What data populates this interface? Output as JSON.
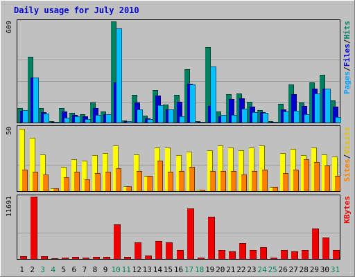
{
  "chart_data": {
    "type": "bar",
    "title": "Daily usage for July 2010",
    "days": [
      "1",
      "2",
      "3",
      "4",
      "5",
      "6",
      "7",
      "8",
      "9",
      "10",
      "11",
      "12",
      "13",
      "14",
      "15",
      "16",
      "17",
      "18",
      "19",
      "20",
      "21",
      "22",
      "23",
      "24",
      "25",
      "26",
      "27",
      "28",
      "29",
      "30",
      "31"
    ],
    "weekend_days": [
      3,
      4,
      10,
      11,
      17,
      18,
      24,
      25,
      31
    ],
    "panels": [
      {
        "id": "hits",
        "ymax_label": "609",
        "ymax": 609,
        "right_label": [
          "Pages",
          "/",
          "Files",
          "/",
          "Hits"
        ],
        "right_colors": [
          "#00a0ff",
          "#000000",
          "#0000cc",
          "#000000",
          "#008060"
        ],
        "series": [
          {
            "name": "Hits",
            "color": "#008060",
            "values": [
              87,
              395,
              87,
              8,
              87,
              58,
              50,
              120,
              66,
              609,
              12,
              165,
              41,
              198,
              107,
              165,
              321,
              8,
              453,
              66,
              173,
              177,
              124,
              74,
              8,
              111,
              231,
              120,
              243,
              289,
              132
            ]
          },
          {
            "name": "Files",
            "color": "#0000cc",
            "values": [
              71,
              272,
              62,
              4,
              66,
              45,
              37,
              87,
              50,
              243,
              8,
              120,
              25,
              161,
              78,
              124,
              235,
              4,
              100,
              37,
              140,
              148,
              95,
              62,
              4,
              78,
              173,
              99,
              206,
              206,
              95
            ]
          },
          {
            "name": "Pages",
            "color": "#00c0ff",
            "values": [
              74,
              272,
              53,
              4,
              29,
              37,
              21,
              45,
              50,
              568,
              8,
              79,
              21,
              103,
              78,
              37,
              231,
              4,
              338,
              45,
              45,
              82,
              62,
              58,
              4,
              66,
              70,
              50,
              177,
              206,
              33
            ]
          }
        ]
      },
      {
        "id": "visits",
        "ymax_label": "50",
        "ymax": 50,
        "right_label": [
          "Sites",
          "/",
          "Visits"
        ],
        "right_colors": [
          "#ff8000",
          "#000000",
          "#e0c000"
        ],
        "series": [
          {
            "name": "Visits",
            "color": "#ffff00",
            "values": [
              49,
              42,
              29,
              2,
              19,
              25,
              24,
              28,
              30,
              36,
              4,
              29,
              12,
              34,
              34,
              28,
              31,
              1,
              32,
              36,
              34,
              32,
              34,
              36,
              3,
              30,
              33,
              28,
              34,
              29,
              27
            ]
          },
          {
            "name": "Sites",
            "color": "#ff8000",
            "values": [
              17,
              15,
              13,
              2,
              11,
              15,
              9,
              14,
              15,
              18,
              4,
              16,
              12,
              24,
              15,
              16,
              19,
              1,
              16,
              16,
              16,
              13,
              16,
              17,
              3,
              14,
              17,
              25,
              23,
              20,
              12
            ]
          }
        ]
      },
      {
        "id": "kbytes",
        "ymax_label": "11691",
        "ymax": 11691,
        "right_label": [
          "KBytes"
        ],
        "right_colors": [
          "#ee0000"
        ],
        "series": [
          {
            "name": "KBytes",
            "color": "#ee0000",
            "values": [
              510,
              11691,
              510,
              102,
              306,
              408,
              306,
              408,
              408,
              6533,
              408,
              3165,
              612,
              3369,
              3165,
              1633,
              9527,
              204,
              7860,
              1633,
              1429,
              2961,
              1633,
              2144,
              204,
              1633,
              1429,
              1633,
              5718,
              3980,
              1633
            ]
          }
        ]
      }
    ]
  }
}
